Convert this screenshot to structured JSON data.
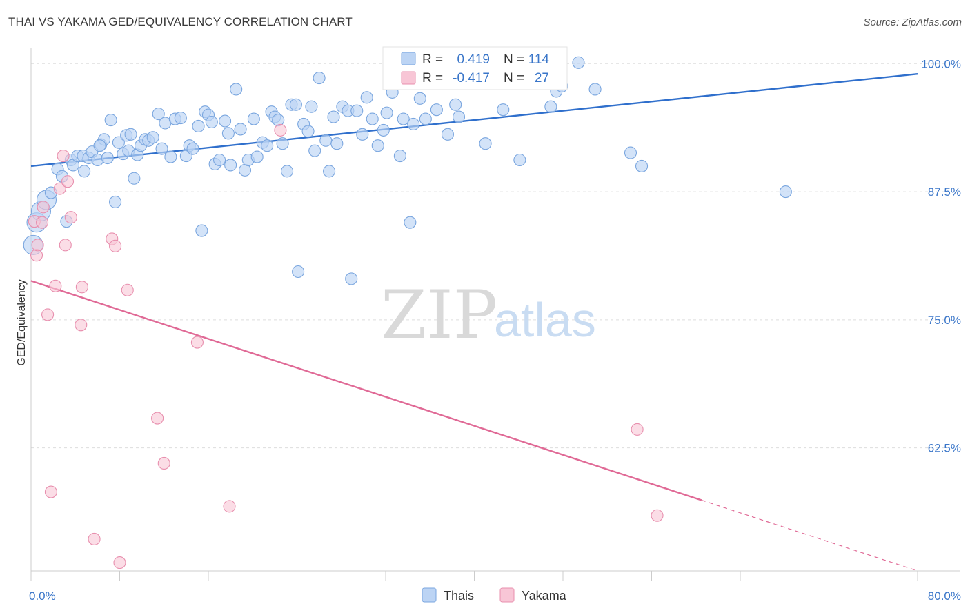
{
  "header": {
    "title": "THAI VS YAKAMA GED/EQUIVALENCY CORRELATION CHART",
    "source": "Source: ZipAtlas.com"
  },
  "watermark": {
    "zip": "ZIP",
    "atlas": "atlas"
  },
  "legend": {
    "rows": [
      {
        "r_label": "R =",
        "r_value": "0.419",
        "n_label": "N =",
        "n_value": "114"
      },
      {
        "r_label": "R =",
        "r_value": "-0.417",
        "n_label": "N =",
        "n_value": "27"
      }
    ]
  },
  "bottom_legend": [
    "Thais",
    "Yakama"
  ],
  "colors": {
    "thais_fill": "#bcd4f4",
    "thais_stroke": "#7aa6df",
    "thais_line": "#2f6fcc",
    "yakama_fill": "#f8c6d6",
    "yakama_stroke": "#e88fae",
    "yakama_line": "#e06a96",
    "tick_text": "#3a76c9",
    "grid": "#dddddd"
  },
  "chart_data": {
    "type": "scatter",
    "title": "THAI VS YAKAMA GED/EQUIVALENCY CORRELATION CHART",
    "xlabel": "",
    "ylabel": "GED/Equivalency",
    "xlim": [
      0,
      80
    ],
    "ylim": [
      50.5,
      101.5
    ],
    "x_tick_labels": [
      {
        "value": 0,
        "label": "0.0%"
      },
      {
        "value": 80,
        "label": "80.0%"
      }
    ],
    "y_tick_labels": [
      {
        "value": 100,
        "label": "100.0%"
      },
      {
        "value": 87.5,
        "label": "87.5%"
      },
      {
        "value": 75,
        "label": "75.0%"
      },
      {
        "value": 62.5,
        "label": "62.5%"
      }
    ],
    "grid": true,
    "legend_position": "top-center",
    "series": [
      {
        "name": "Thais",
        "r": 0.419,
        "n": 114,
        "trend": {
          "x": [
            0,
            80
          ],
          "y": [
            90.0,
            99.0
          ]
        },
        "points": [
          [
            0.2,
            82.3
          ],
          [
            0.5,
            84.5
          ],
          [
            0.9,
            85.6
          ],
          [
            1.4,
            86.7
          ],
          [
            1.8,
            87.4
          ],
          [
            2.4,
            89.7
          ],
          [
            2.8,
            89.0
          ],
          [
            3.2,
            84.6
          ],
          [
            3.6,
            90.6
          ],
          [
            3.8,
            90.1
          ],
          [
            4.2,
            91.0
          ],
          [
            4.7,
            91.0
          ],
          [
            4.8,
            89.5
          ],
          [
            5.2,
            90.8
          ],
          [
            5.5,
            91.4
          ],
          [
            6.0,
            90.6
          ],
          [
            6.3,
            92.1
          ],
          [
            6.6,
            92.6
          ],
          [
            6.9,
            90.8
          ],
          [
            7.2,
            94.5
          ],
          [
            7.6,
            86.5
          ],
          [
            7.9,
            92.3
          ],
          [
            8.3,
            91.2
          ],
          [
            8.6,
            93.0
          ],
          [
            8.8,
            91.5
          ],
          [
            9.3,
            88.8
          ],
          [
            9.6,
            91.1
          ],
          [
            9.9,
            92.0
          ],
          [
            10.3,
            92.6
          ],
          [
            10.6,
            92.5
          ],
          [
            11.0,
            92.8
          ],
          [
            11.5,
            95.1
          ],
          [
            11.8,
            91.7
          ],
          [
            12.1,
            94.2
          ],
          [
            12.6,
            90.9
          ],
          [
            13.0,
            94.6
          ],
          [
            13.5,
            94.7
          ],
          [
            14.0,
            91.0
          ],
          [
            14.3,
            92.0
          ],
          [
            14.6,
            91.7
          ],
          [
            15.1,
            93.9
          ],
          [
            15.4,
            83.7
          ],
          [
            15.7,
            95.3
          ],
          [
            16.0,
            95.0
          ],
          [
            16.3,
            94.3
          ],
          [
            16.6,
            90.2
          ],
          [
            17.0,
            90.6
          ],
          [
            17.5,
            94.4
          ],
          [
            17.8,
            93.2
          ],
          [
            18.0,
            90.1
          ],
          [
            18.5,
            97.5
          ],
          [
            18.9,
            93.6
          ],
          [
            19.3,
            89.6
          ],
          [
            19.6,
            90.6
          ],
          [
            20.1,
            94.6
          ],
          [
            20.4,
            90.9
          ],
          [
            20.9,
            92.3
          ],
          [
            21.3,
            92.0
          ],
          [
            21.7,
            95.3
          ],
          [
            22.0,
            94.8
          ],
          [
            22.3,
            94.5
          ],
          [
            22.7,
            92.2
          ],
          [
            23.1,
            89.5
          ],
          [
            23.5,
            96.0
          ],
          [
            23.9,
            96.0
          ],
          [
            24.1,
            79.7
          ],
          [
            24.6,
            94.1
          ],
          [
            25.0,
            93.4
          ],
          [
            25.3,
            95.8
          ],
          [
            25.6,
            91.5
          ],
          [
            26.0,
            98.6
          ],
          [
            26.6,
            92.5
          ],
          [
            26.9,
            89.5
          ],
          [
            27.3,
            94.8
          ],
          [
            27.6,
            92.2
          ],
          [
            28.1,
            95.8
          ],
          [
            28.6,
            95.4
          ],
          [
            28.9,
            79.0
          ],
          [
            29.4,
            95.4
          ],
          [
            29.9,
            93.1
          ],
          [
            30.3,
            96.7
          ],
          [
            30.8,
            94.6
          ],
          [
            31.3,
            92.0
          ],
          [
            31.8,
            93.5
          ],
          [
            32.1,
            95.2
          ],
          [
            32.6,
            97.2
          ],
          [
            33.0,
            98.4
          ],
          [
            33.3,
            91.0
          ],
          [
            33.6,
            94.6
          ],
          [
            34.2,
            84.5
          ],
          [
            34.5,
            94.1
          ],
          [
            35.1,
            96.6
          ],
          [
            35.6,
            94.6
          ],
          [
            36.0,
            98.6
          ],
          [
            36.6,
            95.5
          ],
          [
            37.1,
            98.6
          ],
          [
            37.6,
            93.1
          ],
          [
            38.3,
            96.0
          ],
          [
            38.6,
            94.8
          ],
          [
            39.1,
            98.9
          ],
          [
            41.0,
            92.2
          ],
          [
            42.6,
            95.5
          ],
          [
            44.1,
            90.6
          ],
          [
            46.1,
            98.2
          ],
          [
            46.9,
            95.8
          ],
          [
            47.4,
            97.3
          ],
          [
            47.9,
            97.8
          ],
          [
            49.4,
            100.1
          ],
          [
            50.9,
            97.5
          ],
          [
            54.1,
            91.3
          ],
          [
            55.1,
            90.0
          ],
          [
            68.1,
            87.5
          ],
          [
            6.2,
            92.0
          ],
          [
            9.0,
            93.1
          ]
        ]
      },
      {
        "name": "Yakama",
        "r": -0.417,
        "n": 27,
        "trend": {
          "x": [
            0,
            60.5
          ],
          "y": [
            78.8,
            57.4
          ]
        },
        "trend_extrapolated": {
          "x": [
            60.5,
            80
          ],
          "y": [
            57.4,
            50.5
          ]
        },
        "points": [
          [
            0.3,
            84.6
          ],
          [
            0.5,
            81.3
          ],
          [
            0.6,
            82.3
          ],
          [
            1.0,
            84.5
          ],
          [
            1.1,
            86.0
          ],
          [
            1.5,
            75.5
          ],
          [
            1.8,
            58.2
          ],
          [
            2.2,
            78.3
          ],
          [
            2.6,
            87.8
          ],
          [
            2.9,
            91.0
          ],
          [
            3.1,
            82.3
          ],
          [
            3.3,
            88.5
          ],
          [
            3.6,
            85.0
          ],
          [
            4.5,
            74.5
          ],
          [
            4.6,
            78.2
          ],
          [
            5.7,
            53.6
          ],
          [
            7.3,
            82.9
          ],
          [
            7.6,
            82.2
          ],
          [
            8.0,
            51.3
          ],
          [
            8.7,
            77.9
          ],
          [
            11.4,
            65.4
          ],
          [
            12.0,
            61.0
          ],
          [
            15.0,
            72.8
          ],
          [
            17.9,
            56.8
          ],
          [
            22.5,
            93.5
          ],
          [
            54.7,
            64.3
          ],
          [
            56.5,
            55.9
          ]
        ]
      }
    ]
  }
}
